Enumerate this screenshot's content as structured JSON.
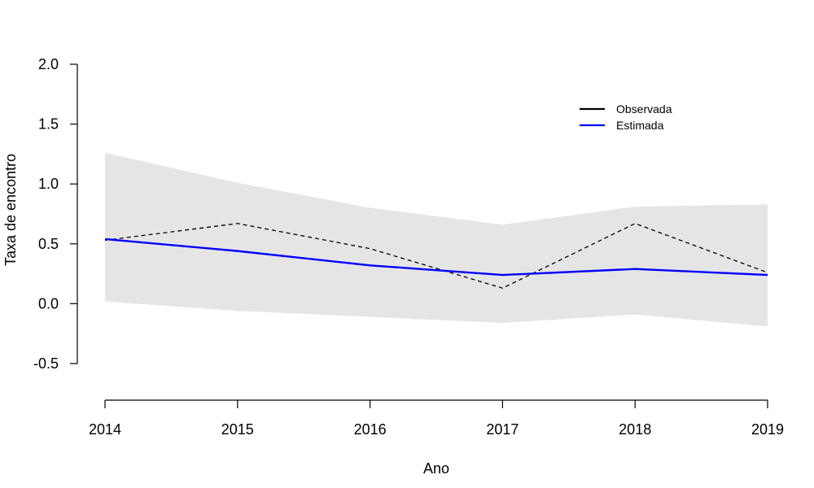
{
  "chart_data": {
    "type": "line",
    "title": "",
    "xlabel": "Ano",
    "ylabel": "Taxa de encontro",
    "x": [
      2014,
      2015,
      2016,
      2017,
      2018,
      2019
    ],
    "x_ticks": [
      "2014",
      "2015",
      "2016",
      "2017",
      "2018",
      "2019"
    ],
    "y_ticks": [
      "2.0",
      "1.5",
      "1.0",
      "0.5",
      "0.0",
      "-0.5"
    ],
    "y_tick_values": [
      2.0,
      1.5,
      1.0,
      0.5,
      0.0,
      -0.5
    ],
    "ylim": [
      -0.5,
      2.0
    ],
    "grid": false,
    "legend_position": "top-right",
    "band": {
      "upper": [
        1.26,
        1.01,
        0.8,
        0.66,
        0.81,
        0.83
      ],
      "lower": [
        0.02,
        -0.06,
        -0.11,
        -0.16,
        -0.09,
        -0.19
      ],
      "color": "#e5e5e5"
    },
    "series": [
      {
        "name": "Observada",
        "values": [
          0.53,
          0.67,
          0.46,
          0.13,
          0.67,
          0.26
        ],
        "color": "#000000",
        "style": "dashed"
      },
      {
        "name": "Estimada",
        "values": [
          0.54,
          0.44,
          0.32,
          0.24,
          0.29,
          0.24
        ],
        "color": "#0000ff",
        "style": "solid"
      }
    ]
  }
}
